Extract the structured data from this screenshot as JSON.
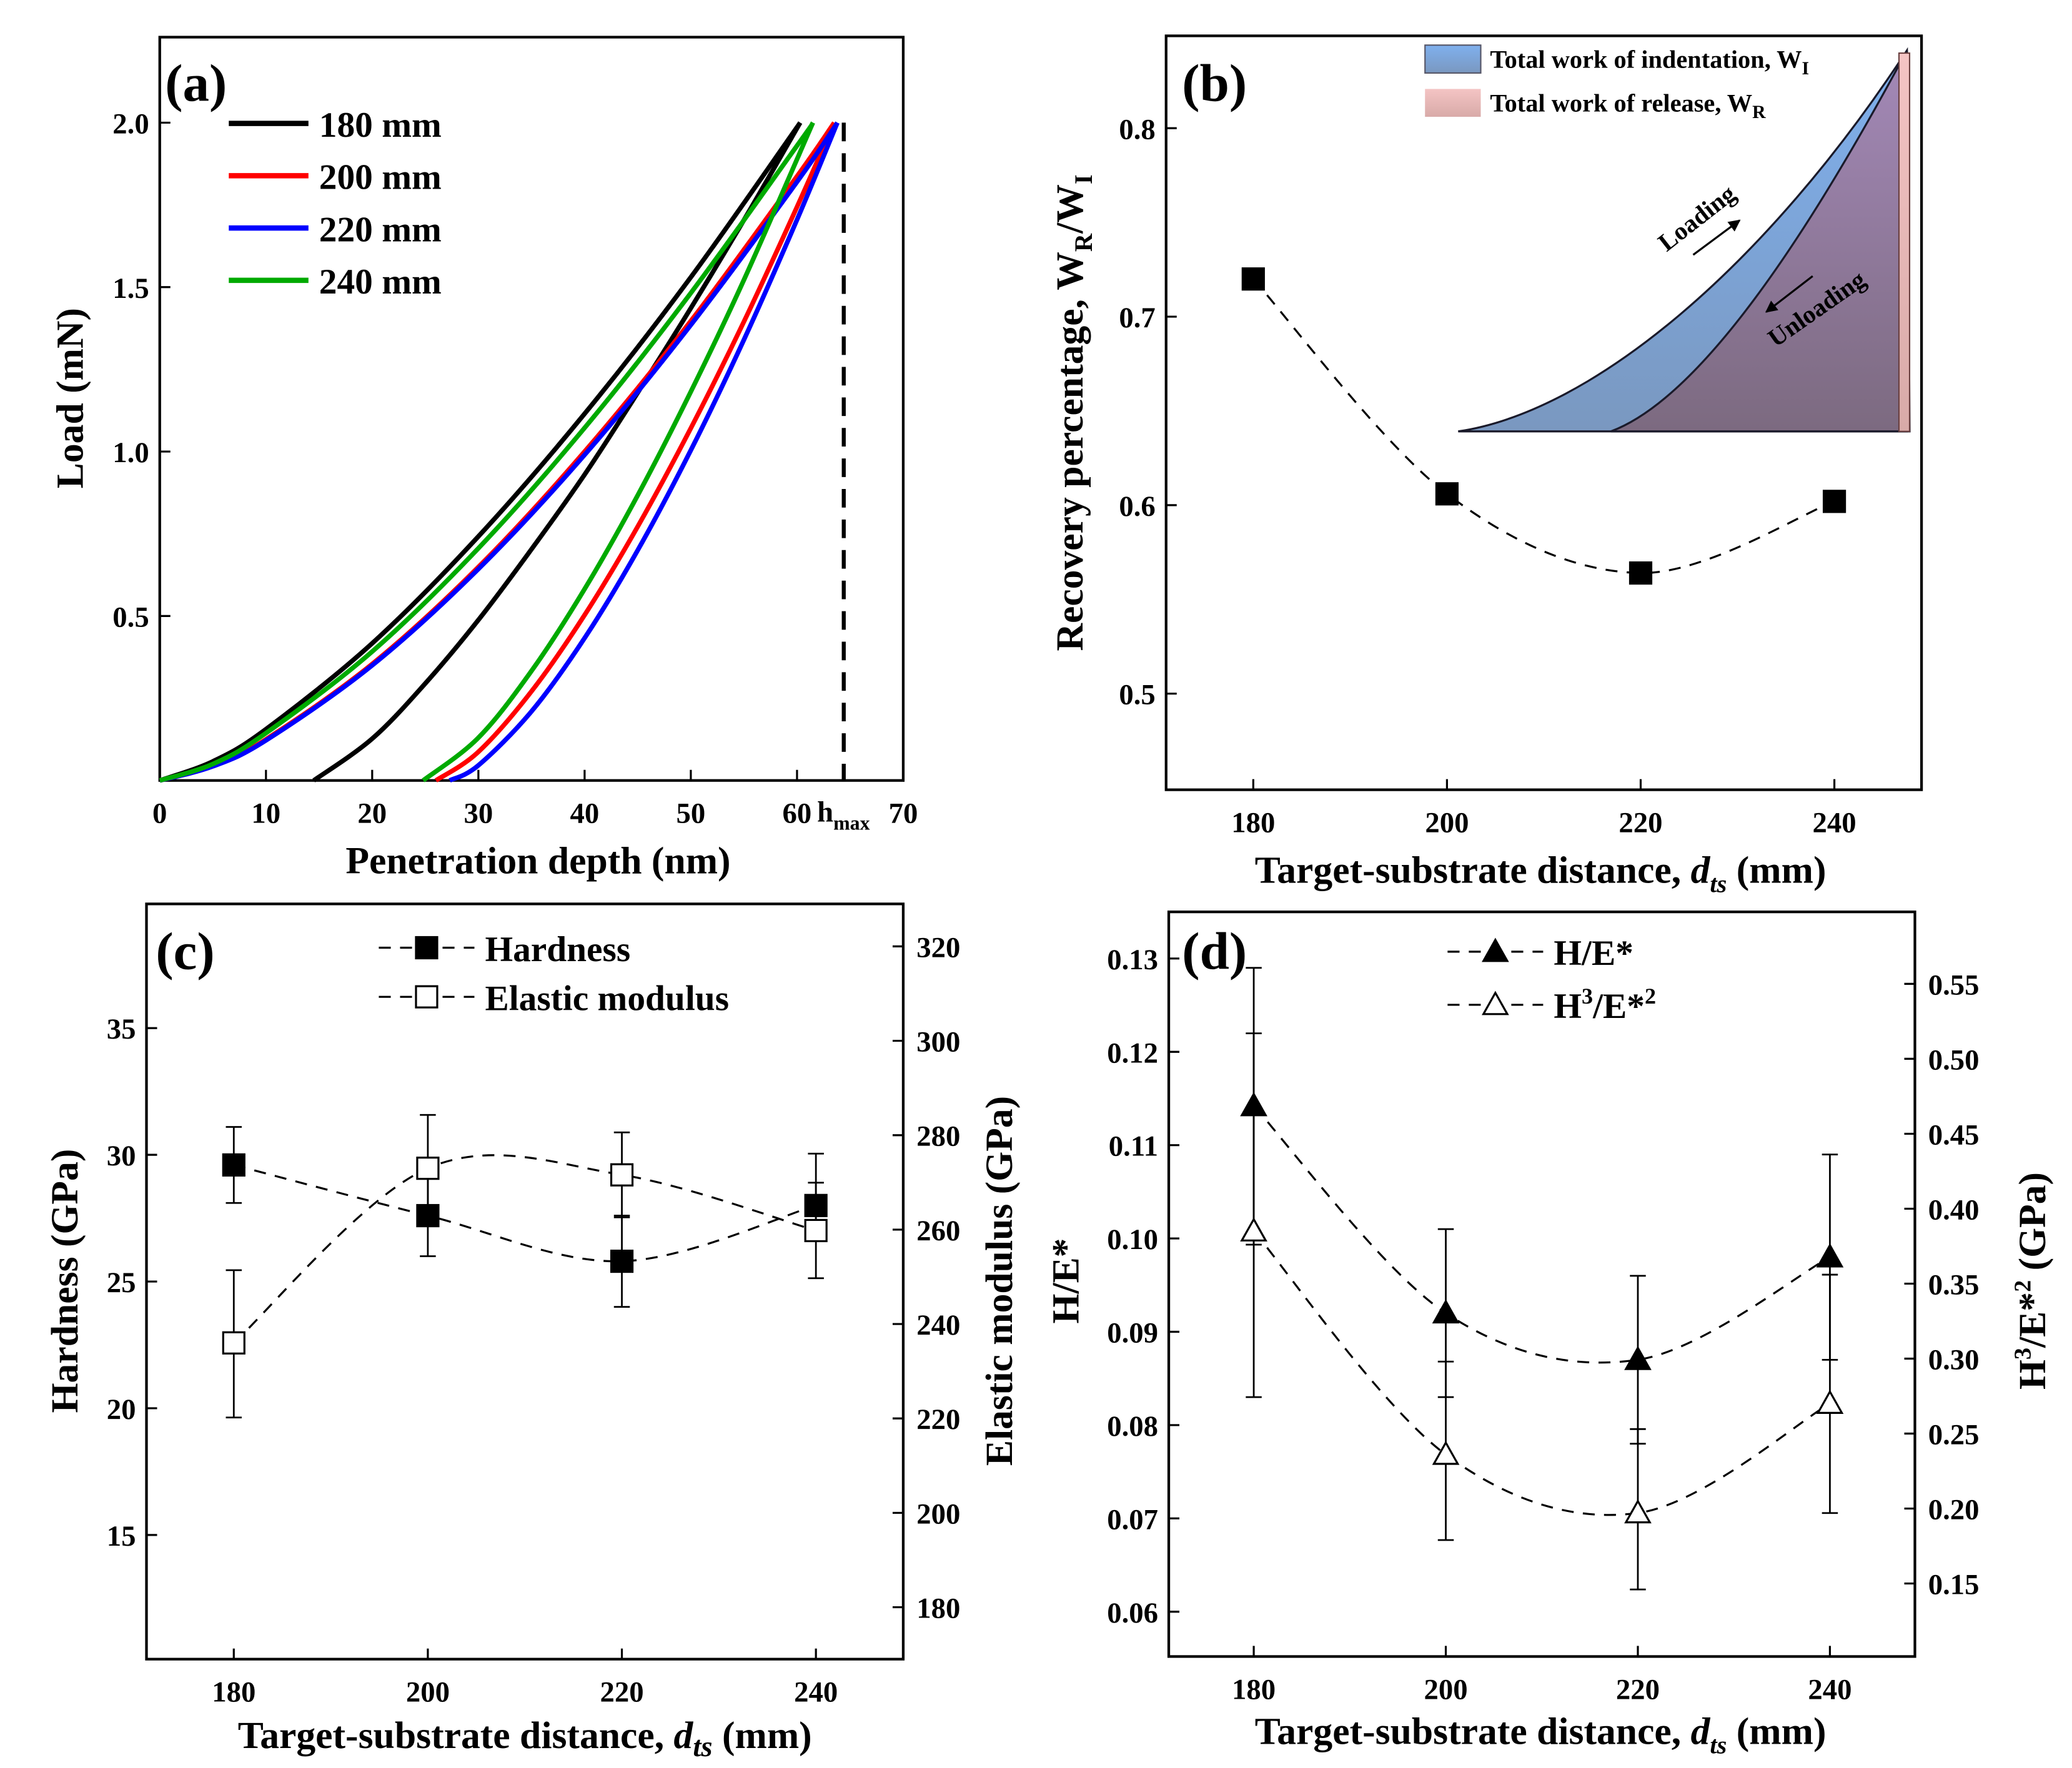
{
  "chart_data": [
    {
      "panel": "(a)",
      "type": "line",
      "xlabel": "Penetration depth (nm)",
      "ylabel": "Load (mN)",
      "xlim": [
        0,
        70
      ],
      "ylim": [
        0,
        2.26
      ],
      "xticks": [
        "0",
        "10",
        "20",
        "30",
        "40",
        "50",
        "60",
        "70"
      ],
      "yticks": [
        "0.5",
        "1.0",
        "1.5",
        "2.0"
      ],
      "annotation": {
        "text": "h",
        "sub": "max",
        "x": 64.4
      },
      "series": [
        {
          "name": "180 mm",
          "color": "#000000",
          "loading": [
            [
              0,
              0
            ],
            [
              5,
              0.058
            ],
            [
              10,
              0.156
            ],
            [
              20,
              0.417
            ],
            [
              30,
              0.742
            ],
            [
              40,
              1.115
            ],
            [
              50,
              1.53
            ],
            [
              60.3,
              2.0
            ]
          ],
          "unloading": [
            [
              14.5,
              0
            ],
            [
              20,
              0.127
            ],
            [
              25,
              0.295
            ],
            [
              30,
              0.488
            ],
            [
              35,
              0.703
            ],
            [
              40,
              0.93
            ],
            [
              45,
              1.179
            ],
            [
              50,
              1.436
            ],
            [
              55,
              1.704
            ],
            [
              60.3,
              2.0
            ]
          ]
        },
        {
          "name": "200 mm",
          "color": "#ff0000",
          "loading": [
            [
              0,
              0
            ],
            [
              5,
              0.044
            ],
            [
              10,
              0.125
            ],
            [
              20,
              0.354
            ],
            [
              30,
              0.649
            ],
            [
              40,
              1.0
            ],
            [
              50,
              1.397
            ],
            [
              60,
              1.837
            ],
            [
              63.5,
              2.0
            ]
          ],
          "unloading": [
            [
              26,
              0
            ],
            [
              30,
              0.087
            ],
            [
              35,
              0.271
            ],
            [
              40,
              0.503
            ],
            [
              45,
              0.772
            ],
            [
              50,
              1.071
            ],
            [
              55,
              1.395
            ],
            [
              60,
              1.744
            ],
            [
              63.5,
              2.0
            ]
          ]
        },
        {
          "name": "220 mm",
          "color": "#0000ff",
          "loading": [
            [
              0,
              0
            ],
            [
              5,
              0.043
            ],
            [
              10,
              0.122
            ],
            [
              20,
              0.35
            ],
            [
              30,
              0.643
            ],
            [
              40,
              0.99
            ],
            [
              50,
              1.385
            ],
            [
              60,
              1.82
            ],
            [
              63.8,
              2.0
            ]
          ],
          "unloading": [
            [
              27.3,
              0
            ],
            [
              30,
              0.046
            ],
            [
              35,
              0.21
            ],
            [
              40,
              0.433
            ],
            [
              45,
              0.7
            ],
            [
              50,
              1.004
            ],
            [
              55,
              1.34
            ],
            [
              60,
              1.705
            ],
            [
              63.8,
              2.0
            ]
          ]
        },
        {
          "name": "240 mm",
          "color": "#00aa00",
          "loading": [
            [
              0,
              0
            ],
            [
              5,
              0.05
            ],
            [
              10,
              0.144
            ],
            [
              20,
              0.392
            ],
            [
              30,
              0.706
            ],
            [
              40,
              1.072
            ],
            [
              50,
              1.482
            ],
            [
              60,
              1.93
            ],
            [
              61.5,
              2.0
            ]
          ],
          "unloading": [
            [
              24.8,
              0
            ],
            [
              30,
              0.13
            ],
            [
              35,
              0.333
            ],
            [
              40,
              0.582
            ],
            [
              45,
              0.867
            ],
            [
              50,
              1.182
            ],
            [
              55,
              1.522
            ],
            [
              61.5,
              2.0
            ]
          ]
        }
      ],
      "legend_position": "top-left"
    },
    {
      "panel": "(b)",
      "type": "scatter",
      "xlabel": {
        "main": "Target-substrate distance, ",
        "italic": "d",
        "sub": "ts",
        "end": " (mm)"
      },
      "ylabel": {
        "main": "Recovery percentage, W",
        "sub1": "R",
        "mid": "/W",
        "sub2": "I"
      },
      "xlim": [
        171,
        249
      ],
      "ylim": [
        0.449,
        0.849
      ],
      "xticks": [
        "180",
        "200",
        "220",
        "240"
      ],
      "yticks": [
        "0.5",
        "0.6",
        "0.7",
        "0.8"
      ],
      "x": [
        180,
        200,
        220,
        240
      ],
      "values": [
        0.72,
        0.606,
        0.564,
        0.602
      ],
      "fit": "dashed",
      "inset": {
        "legend": [
          {
            "text": "Total work of indentation, W",
            "sub": "I",
            "color": "#7fa8e0"
          },
          {
            "text": "Total work of release, W",
            "sub": "R",
            "color": "#f0b8b8"
          }
        ],
        "loading_label": "Loading",
        "unloading_label": "Unloading"
      }
    },
    {
      "panel": "(c)",
      "type": "scatter",
      "xlabel": {
        "main": "Target-substrate distance, ",
        "italic": "d",
        "sub": "ts",
        "end": " (mm)"
      },
      "ylabel": "Hardness (GPa)",
      "y2label": "Elastic modulus (GPa)",
      "xlim": [
        171,
        249
      ],
      "ylim": [
        10.1,
        39.9
      ],
      "y2lim": [
        169,
        329
      ],
      "xticks": [
        "180",
        "200",
        "220",
        "240"
      ],
      "yticks": [
        "15",
        "20",
        "25",
        "30",
        "35"
      ],
      "y2ticks": [
        "180",
        "200",
        "220",
        "240",
        "260",
        "280",
        "300",
        "320"
      ],
      "x": [
        180,
        200,
        220,
        240
      ],
      "series": [
        {
          "name": "Hardness",
          "axis": "left",
          "marker": "filled-square",
          "values": [
            29.6,
            27.6,
            25.8,
            28.0
          ],
          "err_low": [
            28.1,
            26.0,
            24.0,
            27.1
          ],
          "err_high": [
            31.1,
            29.2,
            27.6,
            28.9
          ]
        },
        {
          "name": "Elastic modulus",
          "axis": "right",
          "marker": "open-square",
          "values": [
            236,
            273,
            271.6,
            259.8
          ],
          "err_low": [
            220.2,
            262,
            262.6,
            249.7
          ],
          "err_high": [
            251.4,
            284.3,
            280.6,
            276.1
          ]
        }
      ],
      "legend_position": "top-center"
    },
    {
      "panel": "(d)",
      "type": "scatter",
      "xlabel": {
        "main": "Target-substrate distance, ",
        "italic": "d",
        "sub": "ts",
        "end": " (mm)"
      },
      "ylabel": "H/E*",
      "y2label": {
        "main": "H",
        "sup1": "3",
        "mid": "/E*",
        "sup2": "2",
        "end": " (GPa)"
      },
      "xlim": [
        171.15,
        248.85
      ],
      "ylim": [
        0.0552,
        0.135
      ],
      "y2lim": [
        0.1013,
        0.598
      ],
      "xticks": [
        "180",
        "200",
        "220",
        "240"
      ],
      "yticks": [
        "0.06",
        "0.07",
        "0.08",
        "0.09",
        "0.10",
        "0.11",
        "0.12",
        "0.13"
      ],
      "y2ticks": [
        "0.15",
        "0.20",
        "0.25",
        "0.30",
        "0.35",
        "0.40",
        "0.45",
        "0.50",
        "0.55"
      ],
      "x": [
        180,
        200,
        220,
        240
      ],
      "series": [
        {
          "name": "H/E*",
          "label": {
            "main": "H/E*"
          },
          "axis": "left",
          "marker": "filled-triangle",
          "values": [
            0.1142,
            0.092,
            0.087,
            0.098
          ],
          "err_low": [
            0.083,
            0.083,
            0.078,
            0.087
          ],
          "err_high": [
            0.129,
            0.101,
            0.096,
            0.109
          ]
        },
        {
          "name": "H3/E*2",
          "label": {
            "main": "H",
            "sup1": "3",
            "mid": "/E*",
            "sup2": "2"
          },
          "axis": "right",
          "marker": "open-triangle",
          "values": [
            0.385,
            0.236,
            0.197,
            0.27
          ],
          "err_low": [
            0.376,
            0.179,
            0.146,
            0.197
          ],
          "err_high": [
            0.517,
            0.298,
            0.253,
            0.356
          ]
        }
      ],
      "legend_position": "top-center"
    }
  ]
}
